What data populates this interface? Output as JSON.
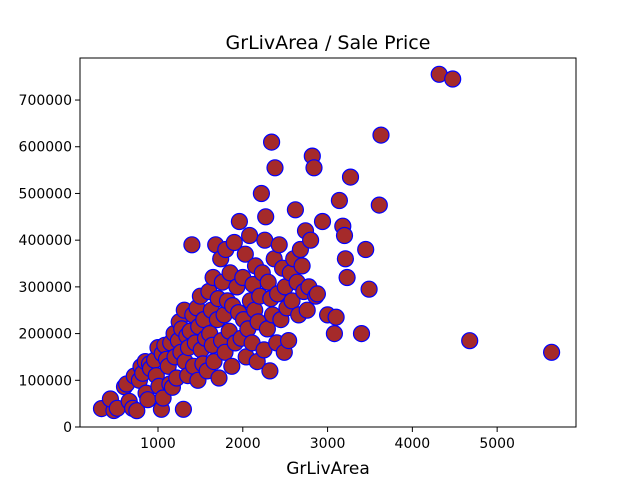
{
  "chart_data": {
    "type": "scatter",
    "title": "GrLivArea / Sale Price",
    "xlabel": "GrLivArea",
    "ylabel": "",
    "xlim": [
      80,
      5930
    ],
    "ylim": [
      0,
      790000
    ],
    "xticks": [
      1000,
      2000,
      3000,
      4000,
      5000
    ],
    "yticks": [
      0,
      100000,
      200000,
      300000,
      400000,
      500000,
      600000,
      700000
    ],
    "grid": false,
    "marker": {
      "fill": "#a52a2a",
      "edge": "#0000ff"
    },
    "points": [
      [
        334,
        39300
      ],
      [
        480,
        35311
      ],
      [
        438,
        60000
      ],
      [
        520,
        40000
      ],
      [
        605,
        86000
      ],
      [
        630,
        92000
      ],
      [
        660,
        55000
      ],
      [
        700,
        40000
      ],
      [
        720,
        109000
      ],
      [
        750,
        34900
      ],
      [
        780,
        100000
      ],
      [
        800,
        129000
      ],
      [
        820,
        115000
      ],
      [
        850,
        140000
      ],
      [
        860,
        72500
      ],
      [
        880,
        58500
      ],
      [
        900,
        135000
      ],
      [
        912,
        125000
      ],
      [
        960,
        143000
      ],
      [
        980,
        110000
      ],
      [
        1000,
        170000
      ],
      [
        1010,
        87000
      ],
      [
        1040,
        38000
      ],
      [
        1050,
        157000
      ],
      [
        1060,
        62000
      ],
      [
        1080,
        175000
      ],
      [
        1100,
        145000
      ],
      [
        1120,
        130000
      ],
      [
        1140,
        92000
      ],
      [
        1150,
        180000
      ],
      [
        1170,
        85000
      ],
      [
        1190,
        200000
      ],
      [
        1200,
        150000
      ],
      [
        1220,
        105000
      ],
      [
        1240,
        185000
      ],
      [
        1250,
        225000
      ],
      [
        1270,
        160000
      ],
      [
        1280,
        210000
      ],
      [
        1300,
        38000
      ],
      [
        1310,
        250000
      ],
      [
        1320,
        140000
      ],
      [
        1340,
        195000
      ],
      [
        1350,
        110000
      ],
      [
        1360,
        170000
      ],
      [
        1380,
        205000
      ],
      [
        1400,
        390000
      ],
      [
        1410,
        240000
      ],
      [
        1420,
        130000
      ],
      [
        1440,
        180000
      ],
      [
        1460,
        255000
      ],
      [
        1470,
        100000
      ],
      [
        1480,
        215000
      ],
      [
        1500,
        280000
      ],
      [
        1510,
        165000
      ],
      [
        1530,
        135000
      ],
      [
        1540,
        230000
      ],
      [
        1560,
        190000
      ],
      [
        1580,
        120000
      ],
      [
        1600,
        290000
      ],
      [
        1610,
        200000
      ],
      [
        1630,
        250000
      ],
      [
        1640,
        175000
      ],
      [
        1650,
        320000
      ],
      [
        1660,
        140000
      ],
      [
        1680,
        390000
      ],
      [
        1700,
        230000
      ],
      [
        1710,
        275000
      ],
      [
        1720,
        105000
      ],
      [
        1740,
        360000
      ],
      [
        1750,
        185000
      ],
      [
        1760,
        310000
      ],
      [
        1780,
        240000
      ],
      [
        1790,
        160000
      ],
      [
        1800,
        380000
      ],
      [
        1820,
        270000
      ],
      [
        1840,
        205000
      ],
      [
        1850,
        330000
      ],
      [
        1870,
        130000
      ],
      [
        1880,
        260000
      ],
      [
        1900,
        395000
      ],
      [
        1910,
        180000
      ],
      [
        1930,
        300000
      ],
      [
        1950,
        245000
      ],
      [
        1960,
        440000
      ],
      [
        1980,
        190000
      ],
      [
        2000,
        320000
      ],
      [
        2010,
        230000
      ],
      [
        2030,
        370000
      ],
      [
        2040,
        150000
      ],
      [
        2060,
        210000
      ],
      [
        2080,
        410000
      ],
      [
        2090,
        270000
      ],
      [
        2110,
        180000
      ],
      [
        2120,
        305000
      ],
      [
        2140,
        250000
      ],
      [
        2150,
        345000
      ],
      [
        2170,
        140000
      ],
      [
        2180,
        225000
      ],
      [
        2200,
        280000
      ],
      [
        2220,
        500000
      ],
      [
        2230,
        330000
      ],
      [
        2250,
        165000
      ],
      [
        2260,
        400000
      ],
      [
        2270,
        450000
      ],
      [
        2290,
        210000
      ],
      [
        2300,
        310000
      ],
      [
        2320,
        120000
      ],
      [
        2330,
        275000
      ],
      [
        2340,
        610000
      ],
      [
        2350,
        240000
      ],
      [
        2370,
        360000
      ],
      [
        2380,
        555000
      ],
      [
        2400,
        180000
      ],
      [
        2410,
        285000
      ],
      [
        2430,
        390000
      ],
      [
        2450,
        230000
      ],
      [
        2470,
        340000
      ],
      [
        2490,
        160000
      ],
      [
        2500,
        300000
      ],
      [
        2520,
        255000
      ],
      [
        2540,
        185000
      ],
      [
        2560,
        330000
      ],
      [
        2580,
        270000
      ],
      [
        2600,
        360000
      ],
      [
        2620,
        465000
      ],
      [
        2640,
        310000
      ],
      [
        2660,
        240000
      ],
      [
        2680,
        380000
      ],
      [
        2700,
        345000
      ],
      [
        2720,
        290000
      ],
      [
        2740,
        420000
      ],
      [
        2760,
        250000
      ],
      [
        2780,
        300000
      ],
      [
        2800,
        400000
      ],
      [
        2820,
        580000
      ],
      [
        2840,
        555000
      ],
      [
        2860,
        280000
      ],
      [
        2880,
        285000
      ],
      [
        2940,
        440000
      ],
      [
        3000,
        240000
      ],
      [
        3080,
        200000
      ],
      [
        3100,
        235000
      ],
      [
        3140,
        485000
      ],
      [
        3180,
        430000
      ],
      [
        3200,
        410000
      ],
      [
        3210,
        360000
      ],
      [
        3230,
        320000
      ],
      [
        3270,
        535000
      ],
      [
        3400,
        200000
      ],
      [
        3450,
        380000
      ],
      [
        3490,
        295000
      ],
      [
        3610,
        475000
      ],
      [
        3630,
        625000
      ],
      [
        4316,
        755000
      ],
      [
        4476,
        745000
      ],
      [
        4676,
        184750
      ],
      [
        5642,
        160000
      ]
    ]
  }
}
